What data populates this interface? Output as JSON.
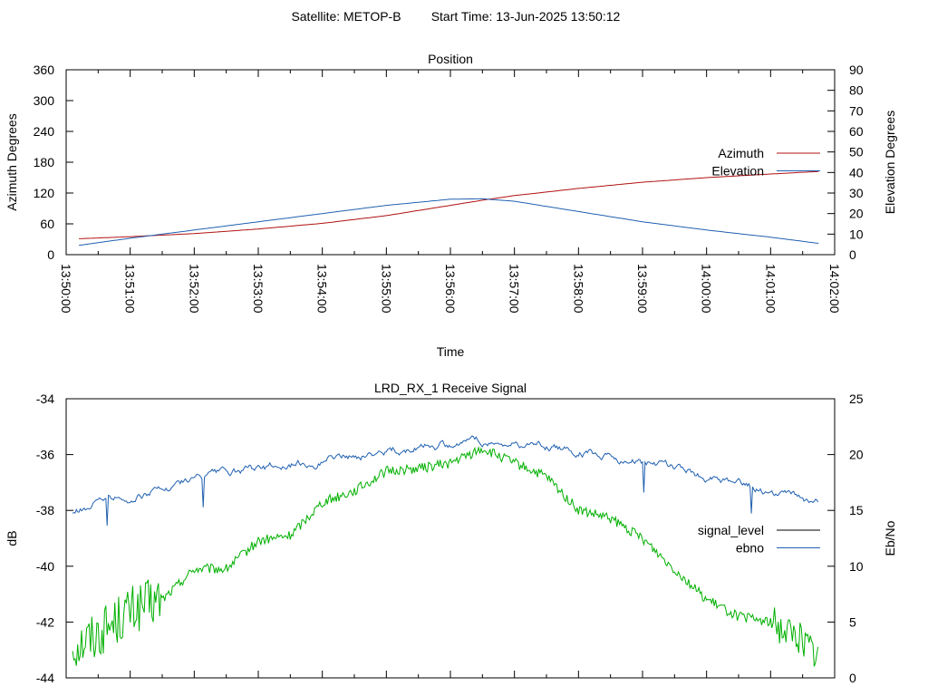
{
  "header": {
    "satellite": "Satellite: METOP-B",
    "start_time": "Start Time: 13-Jun-2025 13:50:12"
  },
  "chart_data": [
    {
      "type": "line",
      "title": "Position",
      "xlabel": "Time",
      "ylabel": "Azimuth Degrees",
      "y2label": "Elevation Degrees",
      "x_ticks": [
        "13:50:00",
        "13:51:00",
        "13:52:00",
        "13:53:00",
        "13:54:00",
        "13:55:00",
        "13:56:00",
        "13:57:00",
        "13:58:00",
        "13:59:00",
        "14:00:00",
        "14:01:00",
        "14:02:00"
      ],
      "xlim_minutes": [
        0,
        12
      ],
      "ylim": [
        0,
        360
      ],
      "y_ticks": [
        0,
        60,
        120,
        180,
        240,
        300,
        360
      ],
      "y2lim": [
        0,
        90
      ],
      "y2_ticks": [
        0,
        10,
        20,
        30,
        40,
        50,
        60,
        70,
        80,
        90
      ],
      "legend_position": "right",
      "grid": false,
      "series": [
        {
          "name": "Azimuth",
          "axis": "y",
          "color": "#b01010",
          "x_minutes": [
            0.2,
            1,
            2,
            3,
            4,
            5,
            6,
            6.5,
            7,
            8,
            9,
            10,
            11,
            11.75
          ],
          "values": [
            31,
            35,
            41,
            50,
            61,
            76,
            96,
            106,
            115,
            129,
            141,
            150,
            157,
            162
          ]
        },
        {
          "name": "Elevation",
          "axis": "y2",
          "color": "#2060b0",
          "x_minutes": [
            0.2,
            1,
            2,
            3,
            4,
            5,
            6,
            6.5,
            7,
            8,
            9,
            10,
            11,
            11.75
          ],
          "values": [
            4.5,
            8,
            12,
            16,
            20,
            24,
            27,
            27.2,
            26,
            21,
            16,
            12,
            8.5,
            5.5
          ]
        }
      ]
    },
    {
      "type": "line",
      "title": "LRD_RX_1 Receive Signal",
      "ylabel": "dB",
      "y2label": "Eb/No",
      "xlim_minutes": [
        0,
        12
      ],
      "ylim": [
        -44,
        -34
      ],
      "y_ticks": [
        -44,
        -42,
        -40,
        -38,
        -36,
        -34
      ],
      "y2lim": [
        0,
        25
      ],
      "y2_ticks": [
        0,
        5,
        10,
        15,
        20,
        25
      ],
      "legend_position": "right",
      "grid": false,
      "series": [
        {
          "name": "signal_level",
          "axis": "y",
          "color": "#00b000",
          "legend_color": "#000000",
          "x_minutes": [
            0,
            0.5,
            1,
            1.5,
            2,
            2.5,
            3,
            3.5,
            4,
            4.5,
            5,
            5.5,
            6,
            6.5,
            7,
            7.5,
            8,
            8.5,
            9,
            9.5,
            10,
            10.5,
            11,
            11.5,
            11.75
          ],
          "values": [
            -43,
            -42.4,
            -41.6,
            -41.2,
            -40.1,
            -40.1,
            -39.1,
            -38.9,
            -37.7,
            -37.3,
            -36.6,
            -36.5,
            -36.3,
            -35.8,
            -36.3,
            -36.8,
            -38.0,
            -38.3,
            -39.0,
            -40.1,
            -41.2,
            -41.8,
            -42.0,
            -42.6,
            -43.3
          ]
        },
        {
          "name": "ebno",
          "axis": "y2",
          "color": "#2060b0",
          "x_minutes": [
            0,
            0.5,
            1,
            1.5,
            2,
            2.5,
            3,
            3.5,
            4,
            4.5,
            5,
            5.5,
            6,
            6.5,
            7,
            7.5,
            8,
            8.5,
            9,
            9.5,
            10,
            10.5,
            11,
            11.5,
            11.75
          ],
          "values": [
            14.5,
            15.8,
            16.2,
            16.9,
            17.8,
            18.2,
            18.7,
            19.1,
            19.6,
            19.8,
            20.3,
            20.7,
            20.9,
            21.2,
            21.0,
            20.8,
            20.3,
            19.8,
            19.3,
            18.8,
            18.0,
            17.2,
            16.6,
            16.0,
            15.6
          ]
        }
      ]
    }
  ]
}
